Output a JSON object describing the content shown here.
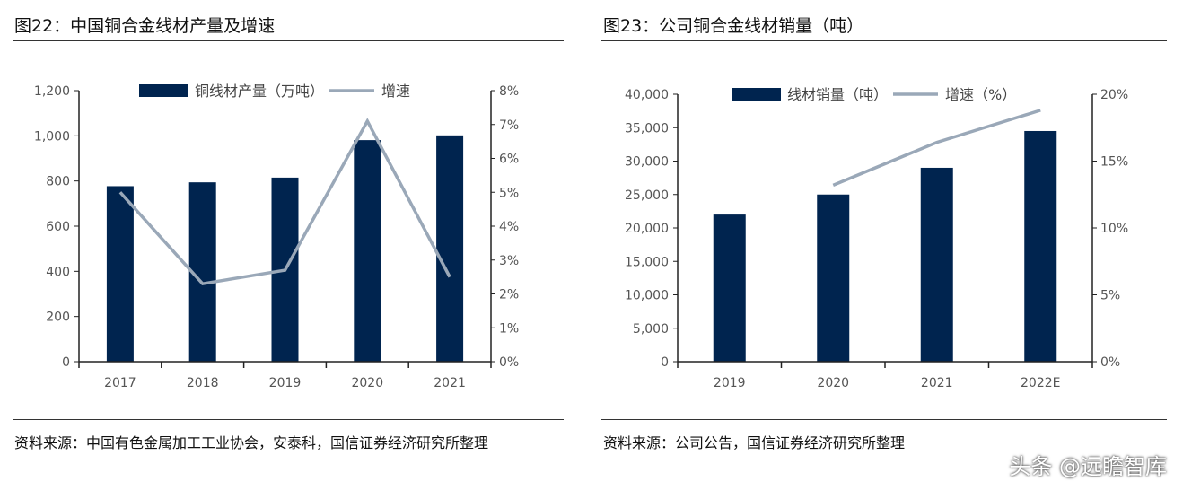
{
  "colors": {
    "bar": "#00244f",
    "line": "#9aa8b8",
    "axis": "#222",
    "tick_text": "#555"
  },
  "watermark": "头条 @远瞻智库",
  "chart_data": [
    {
      "type": "bar+line",
      "title": "图22：中国铜合金线材产量及增速",
      "source": "资料来源：中国有色金属加工工业协会，安泰科，国信证券经济研究所整理",
      "categories": [
        "2017",
        "2018",
        "2019",
        "2020",
        "2021"
      ],
      "series": [
        {
          "name": "铜线材产量（万吨）",
          "type": "bar",
          "axis": "left",
          "values": [
            777,
            794,
            815,
            981,
            1002
          ]
        },
        {
          "name": "增速",
          "type": "line",
          "axis": "right",
          "values": [
            5.0,
            2.3,
            2.7,
            7.1,
            2.5
          ]
        }
      ],
      "ylim": [
        0,
        1200
      ],
      "yticks": [
        "0",
        "200",
        "400",
        "600",
        "800",
        "1,000",
        "1,200"
      ],
      "y2lim": [
        0,
        8
      ],
      "y2ticks": [
        "0%",
        "1%",
        "2%",
        "3%",
        "4%",
        "5%",
        "6%",
        "7%",
        "8%"
      ],
      "legend": "top",
      "grid": false
    },
    {
      "type": "bar+line",
      "title": "图23：公司铜合金线材销量（吨）",
      "source": "资料来源：公司公告，国信证券经济研究所整理",
      "categories": [
        "2019",
        "2020",
        "2021",
        "2022E"
      ],
      "series": [
        {
          "name": "线材销量（吨）",
          "type": "bar",
          "axis": "left",
          "values": [
            22000,
            25000,
            29000,
            34500
          ]
        },
        {
          "name": "增速（%）",
          "type": "line",
          "axis": "right",
          "values": [
            null,
            13.2,
            16.4,
            18.8
          ]
        }
      ],
      "ylim": [
        0,
        40000
      ],
      "yticks": [
        "0",
        "5,000",
        "10,000",
        "15,000",
        "20,000",
        "25,000",
        "30,000",
        "35,000",
        "40,000"
      ],
      "y2lim": [
        0,
        20
      ],
      "y2ticks": [
        "0%",
        "5%",
        "10%",
        "15%",
        "20%"
      ],
      "legend": "top",
      "grid": false
    }
  ]
}
